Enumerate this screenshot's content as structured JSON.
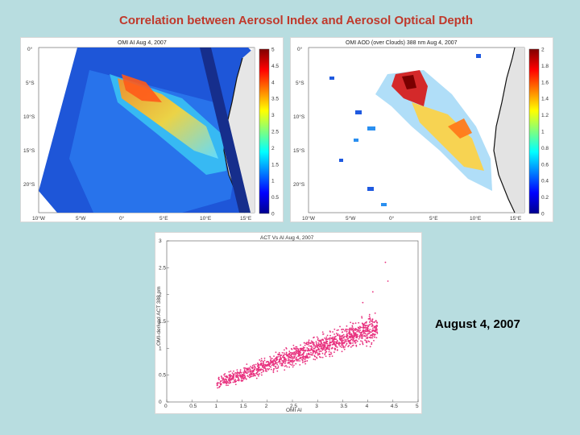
{
  "slide": {
    "title": "Correlation between Aerosol Index and Aerosol Optical Depth",
    "date_label": "August 4, 2007"
  },
  "map_left": {
    "title": "OMI AI Aug 4, 2007",
    "lat_labels": [
      "0°",
      "5°S",
      "10°S",
      "15°S",
      "20°S"
    ],
    "lon_labels": [
      "10°W",
      "5°W",
      "0°",
      "5°E",
      "10°E",
      "15°E"
    ],
    "colorbar_ticks": [
      "5",
      "4.5",
      "4",
      "3.5",
      "3",
      "2.5",
      "2",
      "1.5",
      "1",
      "0.5",
      "0"
    ]
  },
  "map_right": {
    "title": "OMI AOD (over Clouds) 388 nm Aug 4, 2007",
    "lat_labels": [
      "0°",
      "5°S",
      "10°S",
      "15°S",
      "20°S"
    ],
    "lon_labels": [
      "10°W",
      "5°W",
      "0°",
      "5°E",
      "10°E",
      "15°E"
    ],
    "colorbar_ticks": [
      "2",
      "1.8",
      "1.6",
      "1.4",
      "1.2",
      "1",
      "0.8",
      "0.6",
      "0.4",
      "0.2",
      "0"
    ]
  },
  "chart_data": {
    "type": "scatter",
    "title": "ACT Vs AI Aug 4, 2007",
    "xlabel": "OMI AI",
    "ylabel": "OMI-derived ACT 388 nm",
    "xlim": [
      0,
      5
    ],
    "ylim": [
      0,
      3
    ],
    "xticks": [
      "0",
      "0.5",
      "1",
      "1.5",
      "2",
      "2.5",
      "3",
      "3.5",
      "4",
      "4.5",
      "5"
    ],
    "yticks": [
      "0",
      "0.5",
      "1",
      "1.5",
      "2",
      "2.5",
      "3"
    ],
    "point_color": "#e8327f",
    "trend": {
      "x_range": [
        1.0,
        4.2
      ],
      "y_at_x_min": 0.35,
      "y_at_x_max": 1.4
    }
  }
}
